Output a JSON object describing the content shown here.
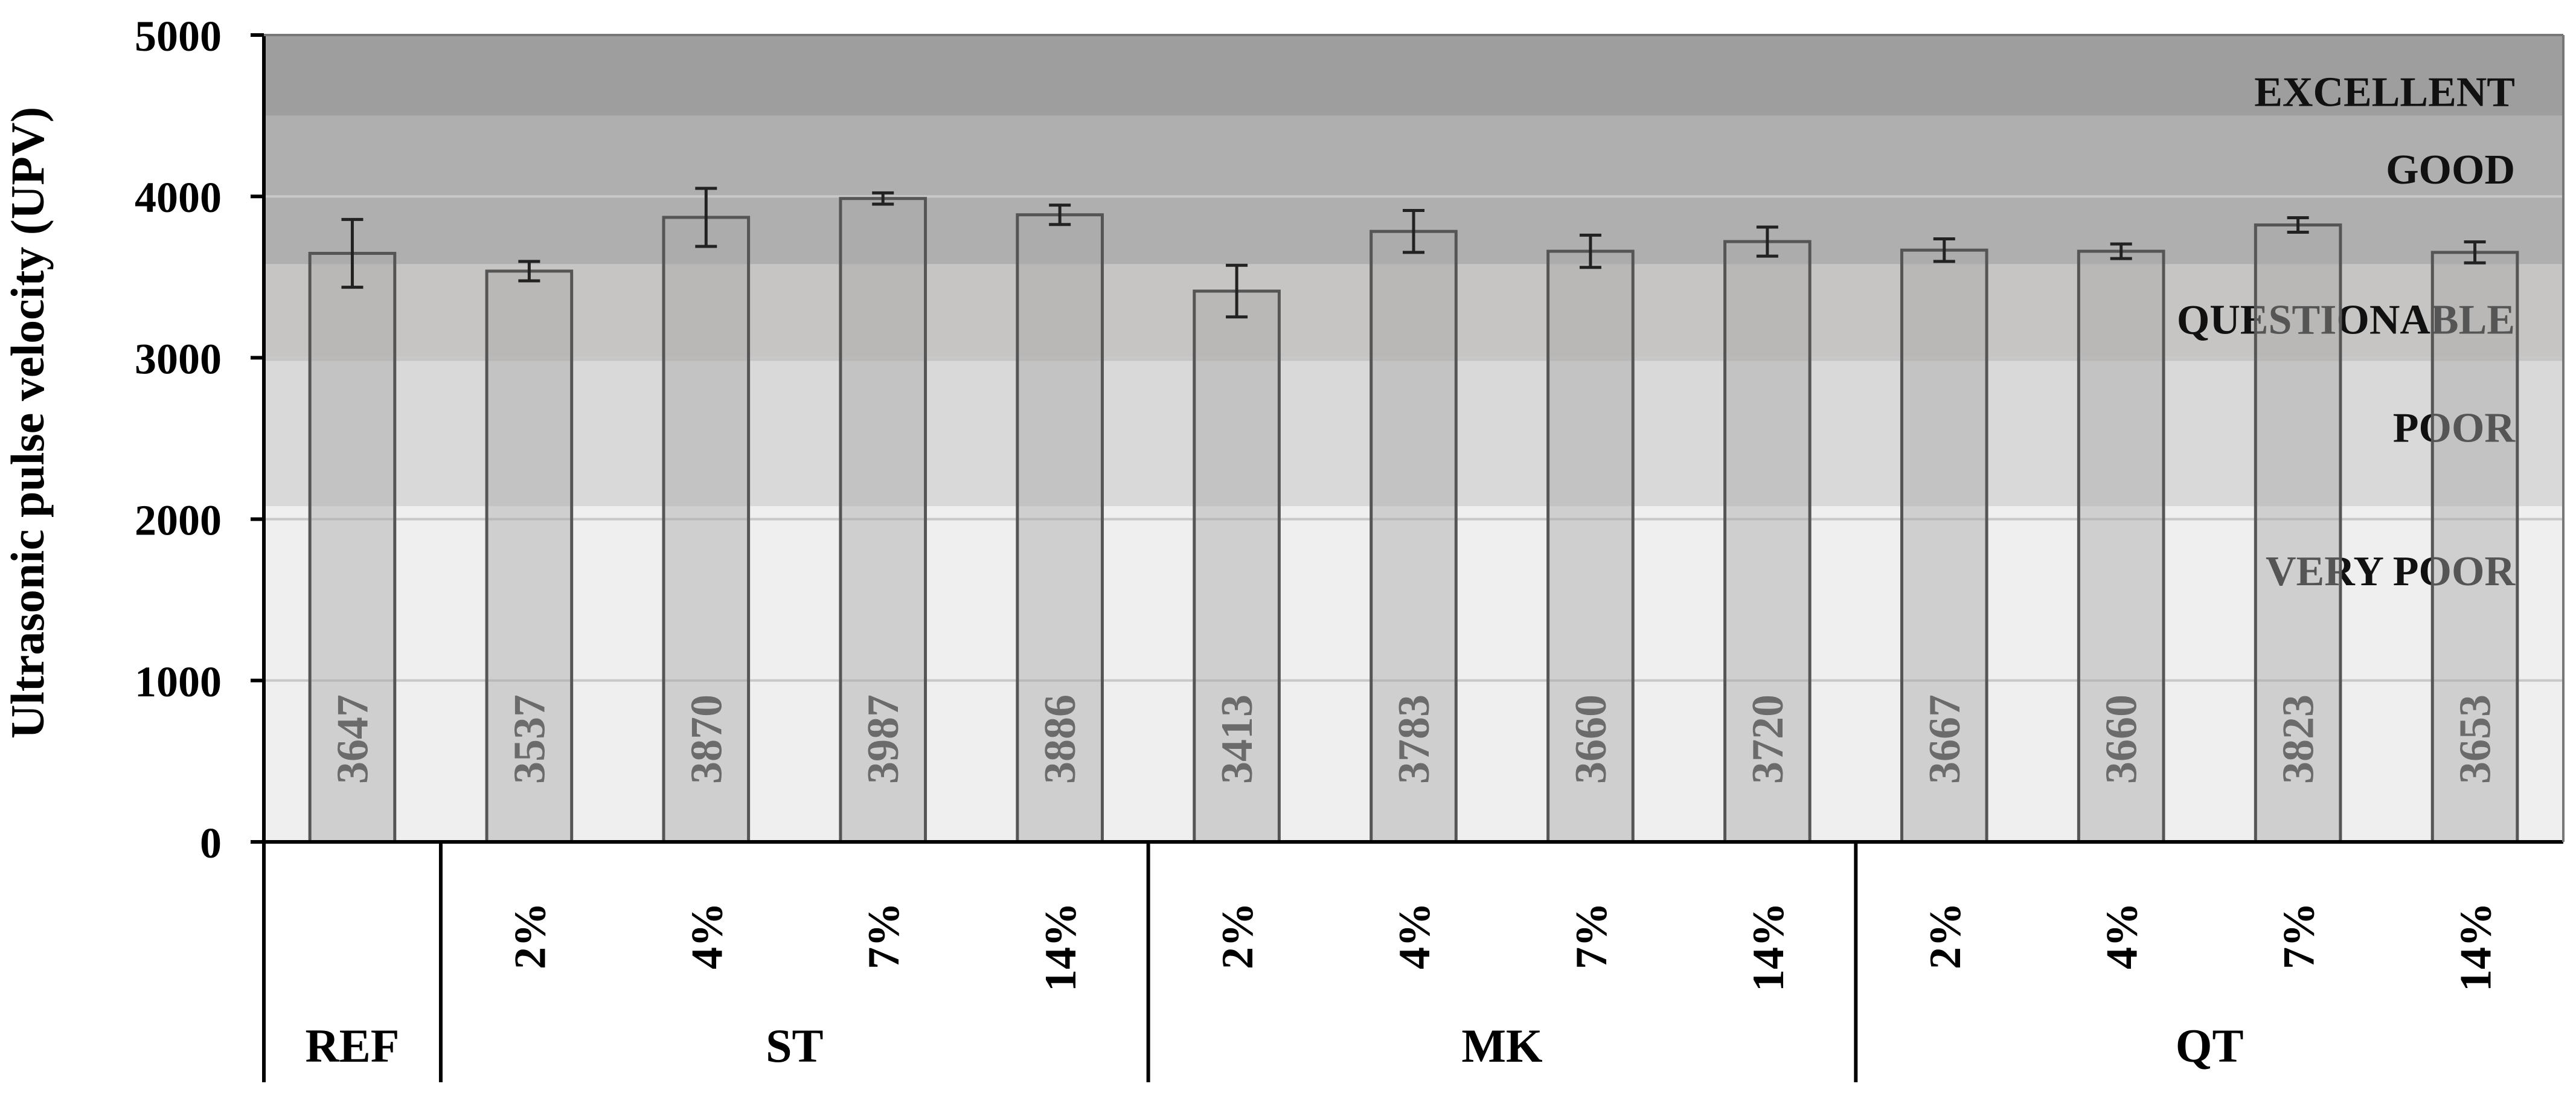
{
  "chart_data": {
    "type": "bar",
    "ylabel": "Ultrasonic pulse velocity (UPV)",
    "ylim": [
      0,
      5000
    ],
    "yticks": [
      0,
      1000,
      2000,
      3000,
      4000,
      5000
    ],
    "grid": true,
    "categories": [
      {
        "label": "",
        "group": "REF",
        "value": 3647,
        "error": 210
      },
      {
        "label": "2%",
        "group": "ST",
        "value": 3537,
        "error": 60
      },
      {
        "label": "4%",
        "group": "ST",
        "value": 3870,
        "error": 180
      },
      {
        "label": "7%",
        "group": "ST",
        "value": 3987,
        "error": 35
      },
      {
        "label": "14%",
        "group": "ST",
        "value": 3886,
        "error": 60
      },
      {
        "label": "2%",
        "group": "MK",
        "value": 3413,
        "error": 160
      },
      {
        "label": "4%",
        "group": "MK",
        "value": 3783,
        "error": 130
      },
      {
        "label": "7%",
        "group": "MK",
        "value": 3660,
        "error": 100
      },
      {
        "label": "14%",
        "group": "MK",
        "value": 3720,
        "error": 90
      },
      {
        "label": "2%",
        "group": "QT",
        "value": 3667,
        "error": 70
      },
      {
        "label": "4%",
        "group": "QT",
        "value": 3660,
        "error": 45
      },
      {
        "label": "7%",
        "group": "QT",
        "value": 3823,
        "error": 45
      },
      {
        "label": "14%",
        "group": "QT",
        "value": 3653,
        "error": 65
      }
    ],
    "groups": [
      "REF",
      "ST",
      "MK",
      "QT"
    ],
    "bands": [
      {
        "label": "VERY POOR",
        "from": 0,
        "to": 2080,
        "color": "#efefef"
      },
      {
        "label": "POOR",
        "from": 2080,
        "to": 2980,
        "color": "#d9d9d9"
      },
      {
        "label": "QUESTIONABLE",
        "from": 2980,
        "to": 3580,
        "color": "#c6c5c4"
      },
      {
        "label": "GOOD",
        "from": 3580,
        "to": 4500,
        "color": "#b0afaf"
      },
      {
        "label": "EXCELLENT",
        "from": 4500,
        "to": 5000,
        "color": "#9e9e9e"
      }
    ],
    "bar_color": "#a9a9a9",
    "bar_opacity": 0.45,
    "value_label_color": "#6b6b6b"
  }
}
